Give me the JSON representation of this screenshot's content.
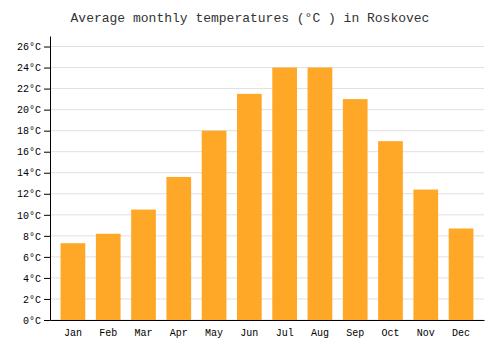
{
  "chart_data": {
    "type": "bar",
    "title": "Average monthly temperatures (°C ) in Roskovec",
    "categories": [
      "Jan",
      "Feb",
      "Mar",
      "Apr",
      "May",
      "Jun",
      "Jul",
      "Aug",
      "Sep",
      "Oct",
      "Nov",
      "Dec"
    ],
    "values": [
      7.3,
      8.2,
      10.5,
      13.6,
      18.0,
      21.5,
      24.0,
      24.0,
      21.0,
      17.0,
      12.4,
      8.7
    ],
    "color": "#FFA726",
    "ylim": [
      0,
      27
    ],
    "yticks": [
      {
        "value": 0,
        "label": "0°C"
      },
      {
        "value": 2,
        "label": "2°C"
      },
      {
        "value": 4,
        "label": "4°C"
      },
      {
        "value": 6,
        "label": "6°C"
      },
      {
        "value": 8,
        "label": "8°C"
      },
      {
        "value": 10,
        "label": "10°C"
      },
      {
        "value": 12,
        "label": "12°C"
      },
      {
        "value": 14,
        "label": "14°C"
      },
      {
        "value": 16,
        "label": "16°C"
      },
      {
        "value": 18,
        "label": "18°C"
      },
      {
        "value": 20,
        "label": "20°C"
      },
      {
        "value": 22,
        "label": "22°C"
      },
      {
        "value": 24,
        "label": "24°C"
      },
      {
        "value": 26,
        "label": "26°C"
      }
    ],
    "grid": true
  }
}
